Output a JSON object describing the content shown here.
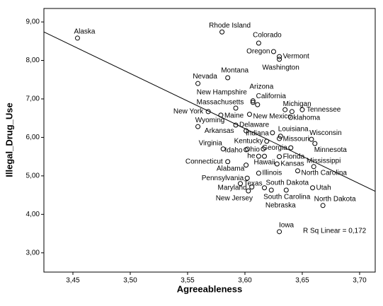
{
  "chart_data": {
    "type": "scatter",
    "x_label": "Agreeableness",
    "y_label": "Illegal_Drug_Use",
    "annotation": "R Sq Linear = 0,172",
    "xlim": [
      3.4247,
      3.7136
    ],
    "ylim": [
      2.5,
      9.35
    ],
    "xticks": [
      {
        "value": 3.45,
        "label": "3,45"
      },
      {
        "value": 3.5,
        "label": "3,50"
      },
      {
        "value": 3.55,
        "label": "3,55"
      },
      {
        "value": 3.6,
        "label": "3,60"
      },
      {
        "value": 3.65,
        "label": "3,65"
      },
      {
        "value": 3.7,
        "label": "3,70"
      }
    ],
    "yticks": [
      {
        "value": 3,
        "label": "3,00"
      },
      {
        "value": 4,
        "label": "4,00"
      },
      {
        "value": 5,
        "label": "5,00"
      },
      {
        "value": 6,
        "label": "6,00"
      },
      {
        "value": 7,
        "label": "7,00"
      },
      {
        "value": 8,
        "label": "8,00"
      },
      {
        "value": 9,
        "label": "9,00"
      }
    ],
    "point_color": "#000000",
    "line_color": "#000000",
    "labels": [
      "Alaska",
      "Rhode Island",
      "Colorado",
      "Oregon",
      "Vermont",
      "Washington",
      "Montana",
      "Nevada",
      "Arizona",
      "New Hampshire",
      "California",
      "Massachusetts",
      "New York",
      "Michigan",
      "Tennessee",
      "Oklahoma",
      "Maine",
      "New Mexico",
      "Wyoming",
      "Delaware",
      "Arkansas",
      "Indiana",
      "Louisiana",
      "Missouri",
      "Wisconsin",
      "Minnesota",
      "Virginia",
      "Kentucky",
      "Idaho",
      "Ohio",
      "Georgia",
      "he",
      "Hawaii",
      "Florida",
      "Connecticut",
      "Kansas",
      "Alabama",
      "North Carolina",
      "Mississippi",
      "Illinois",
      "Pennsylvania",
      "Texas",
      "South Dakota",
      "Utah",
      "Maryland",
      "New Jersey",
      "South Carolina",
      "Nebraska",
      "North Dakota",
      "Iowa"
    ],
    "x": [
      3.454,
      3.58,
      3.612,
      3.625,
      3.63,
      3.63,
      3.585,
      3.559,
      3.607,
      3.607,
      3.611,
      3.592,
      3.568,
      3.635,
      3.65,
      3.641,
      3.579,
      3.604,
      3.559,
      3.592,
      3.601,
      3.624,
      3.631,
      3.63,
      3.658,
      3.661,
      3.581,
      3.619,
      3.601,
      3.616,
      3.64,
      3.612,
      3.617,
      3.63,
      3.585,
      3.628,
      3.601,
      3.646,
      3.66,
      3.612,
      3.602,
      3.596,
      3.617,
      3.659,
      3.606,
      3.603,
      3.623,
      3.636,
      3.668,
      3.63
    ],
    "y": [
      8.58,
      8.74,
      8.45,
      8.23,
      8.1,
      8.03,
      7.55,
      7.4,
      6.91,
      6.95,
      6.85,
      6.76,
      6.67,
      6.72,
      6.72,
      6.67,
      6.58,
      6.6,
      6.28,
      6.32,
      6.17,
      6.12,
      6.03,
      5.97,
      5.95,
      5.84,
      5.7,
      5.9,
      5.68,
      5.7,
      5.73,
      5.51,
      5.51,
      5.5,
      5.37,
      5.31,
      5.28,
      5.13,
      5.24,
      5.07,
      4.94,
      4.8,
      4.69,
      4.69,
      4.71,
      4.61,
      4.63,
      4.63,
      4.23,
      3.55
    ],
    "fit_line": {
      "x": [
        3.4247,
        3.7136
      ],
      "y": [
        8.74,
        4.6
      ]
    }
  }
}
